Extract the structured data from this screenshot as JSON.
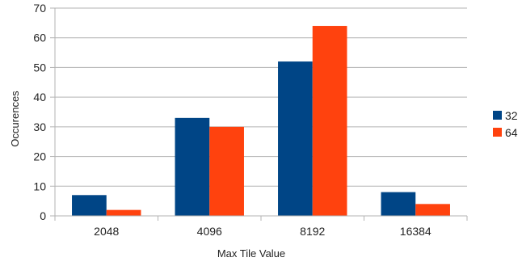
{
  "chart_data": {
    "type": "bar",
    "title": "",
    "xlabel": "Max Tile Value",
    "ylabel": "Occurences",
    "categories": [
      "2048",
      "4096",
      "8192",
      "16384"
    ],
    "series": [
      {
        "name": "32",
        "color": "#004586",
        "values": [
          7,
          33,
          52,
          8
        ]
      },
      {
        "name": "64",
        "color": "#ff420e",
        "values": [
          2,
          30,
          64,
          4
        ]
      }
    ],
    "ylim": [
      0,
      70
    ],
    "yticks": [
      0,
      10,
      20,
      30,
      40,
      50,
      60,
      70
    ],
    "grid": true,
    "legend_position": "right"
  }
}
